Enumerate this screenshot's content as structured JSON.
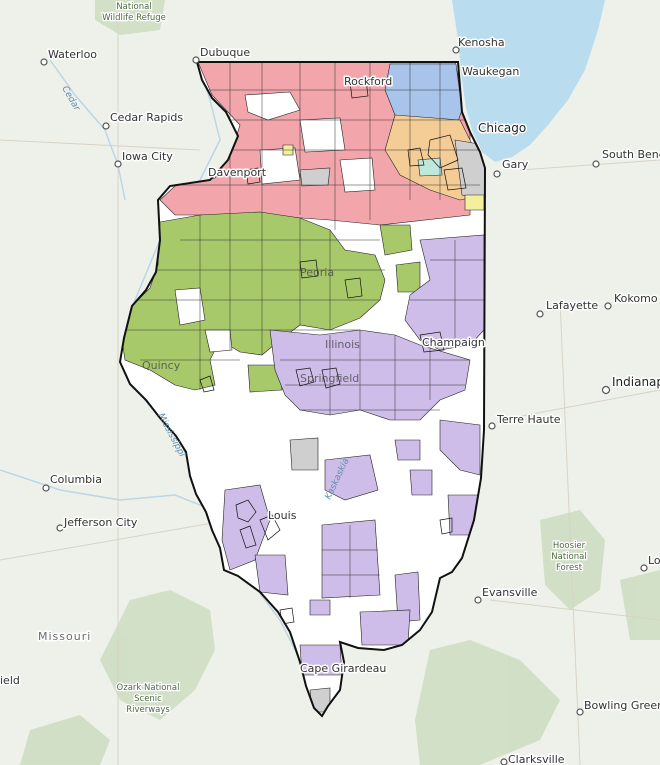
{
  "map": {
    "colors": {
      "background": "#eef0ea",
      "lake": "#b9dcef",
      "state_fill": "#ffffff",
      "state_border": "#111111",
      "red_zone": "#f2a6ab",
      "green_zone": "#a8c96a",
      "purple_zone": "#cdbde8",
      "blue_zone": "#a9c4ea",
      "orange_zone": "#f4cc96",
      "gray_zone": "#cfcfcf",
      "yellow_zone": "#f3ef9c",
      "teal_zone": "#bfe8dc"
    },
    "water_labels": {
      "cedar": "Cedar",
      "mississippi": "Mississippi",
      "kaskaskia": "Kaskaskia"
    },
    "park_labels": {
      "wildlife_refuge_line1": "National",
      "wildlife_refuge_line2": "Wildlife Refuge",
      "ozark_line1": "Ozark National",
      "ozark_line2": "Scenic",
      "ozark_line3": "Riverways",
      "hoosier_line1": "Hoosier",
      "hoosier_line2": "National",
      "hoosier_line3": "Forest"
    },
    "region_labels": {
      "missouri": "Missouri",
      "ield": "ield"
    },
    "cities": {
      "waterloo": "Waterloo",
      "dubuque": "Dubuque",
      "kenosha": "Kenosha",
      "waukegan": "Waukegan",
      "rockford": "Rockford",
      "cedar_rapids": "Cedar Rapids",
      "chicago": "Chicago",
      "iowa_city": "Iowa City",
      "gary": "Gary",
      "south_bend": "South Bend",
      "davenport": "Davenport",
      "peoria": "Peoria",
      "lafayette": "Lafayette",
      "kokomo": "Kokomo",
      "champaign": "Champaign",
      "illinois": "Illinois",
      "quincy": "Quincy",
      "springfield": "Springfield",
      "indianapolis": "Indianap",
      "terre_haute": "Terre Haute",
      "columbia": "Columbia",
      "jefferson_city": "Jefferson City",
      "st_louis": "Louis",
      "lo": "Lo",
      "evansville": "Evansville",
      "cape_girardeau": "Cape Girardeau",
      "bowling_green": "Bowling Green",
      "clarksville": "Clarksville"
    }
  }
}
